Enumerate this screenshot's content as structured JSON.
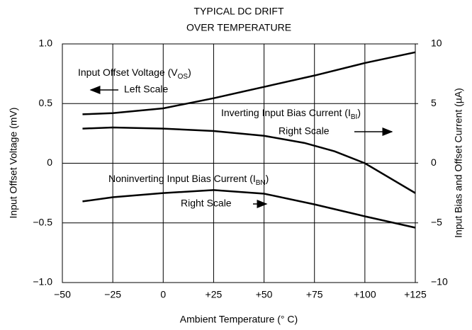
{
  "chart_data": {
    "type": "line",
    "title": [
      "TYPICAL DC DRIFT",
      "OVER TEMPERATURE"
    ],
    "xlabel": "Ambient Temperature (° C)",
    "ylabel": "Input Offset Voltage (mV)",
    "y2label": "Input Bias and Offset Current (µA)",
    "xlim": [
      -50,
      125
    ],
    "xticks": [
      {
        "value": -50,
        "label": "−50"
      },
      {
        "value": -25,
        "label": "−25"
      },
      0,
      {
        "value": 25,
        "label": "+25"
      },
      {
        "value": 50,
        "label": "+50"
      },
      {
        "value": 75,
        "label": "+75"
      },
      {
        "value": 100,
        "label": "+100"
      },
      {
        "value": 125,
        "label": "+125"
      }
    ],
    "ylim": [
      -1,
      1
    ],
    "yticks": [
      {
        "value": -1,
        "label": "−1.0"
      },
      {
        "value": -0.5,
        "label": "−0.5"
      },
      0,
      0.5,
      {
        "value": 1,
        "label": "1.0"
      }
    ],
    "y2lim": [
      -10,
      10
    ],
    "y2ticks": [
      {
        "value": -10,
        "label": "−10"
      },
      {
        "value": -5,
        "label": "−5"
      },
      0,
      5,
      10
    ],
    "grid": true,
    "series": [
      {
        "color": "#000000",
        "x": [
          -40,
          -25,
          0,
          25,
          50,
          75,
          100,
          125
        ],
        "values": [
          0.41,
          0.42,
          0.46,
          0.545,
          0.64,
          0.735,
          0.84,
          0.93
        ]
      },
      {
        "color": "#000000",
        "axis": "y2",
        "x": [
          -40,
          -25,
          0,
          25,
          50,
          70,
          85,
          100,
          125
        ],
        "values": [
          2.9,
          3.0,
          2.9,
          2.7,
          2.3,
          1.7,
          1.0,
          0,
          -2.5
        ]
      },
      {
        "color": "#000000",
        "axis": "y2",
        "x": [
          -40,
          -25,
          0,
          25,
          50,
          75,
          100,
          125
        ],
        "values": [
          -3.2,
          -2.85,
          -2.5,
          -2.25,
          -2.55,
          -3.45,
          -4.45,
          -5.4
        ]
      }
    ],
    "annotations": [
      {
        "text": "Input Offset Voltage (V",
        "sub": "OS",
        "tail": ")"
      },
      {
        "text": "Left Scale"
      },
      {
        "text": "Inverting Input Bias Current (I",
        "sub": "BI",
        "tail": ")"
      },
      {
        "text": "Right Scale"
      },
      {
        "text": "Noninverting Input Bias Current (I",
        "sub": "BN",
        "tail": ")"
      },
      {
        "text": "Right Scale"
      }
    ]
  }
}
